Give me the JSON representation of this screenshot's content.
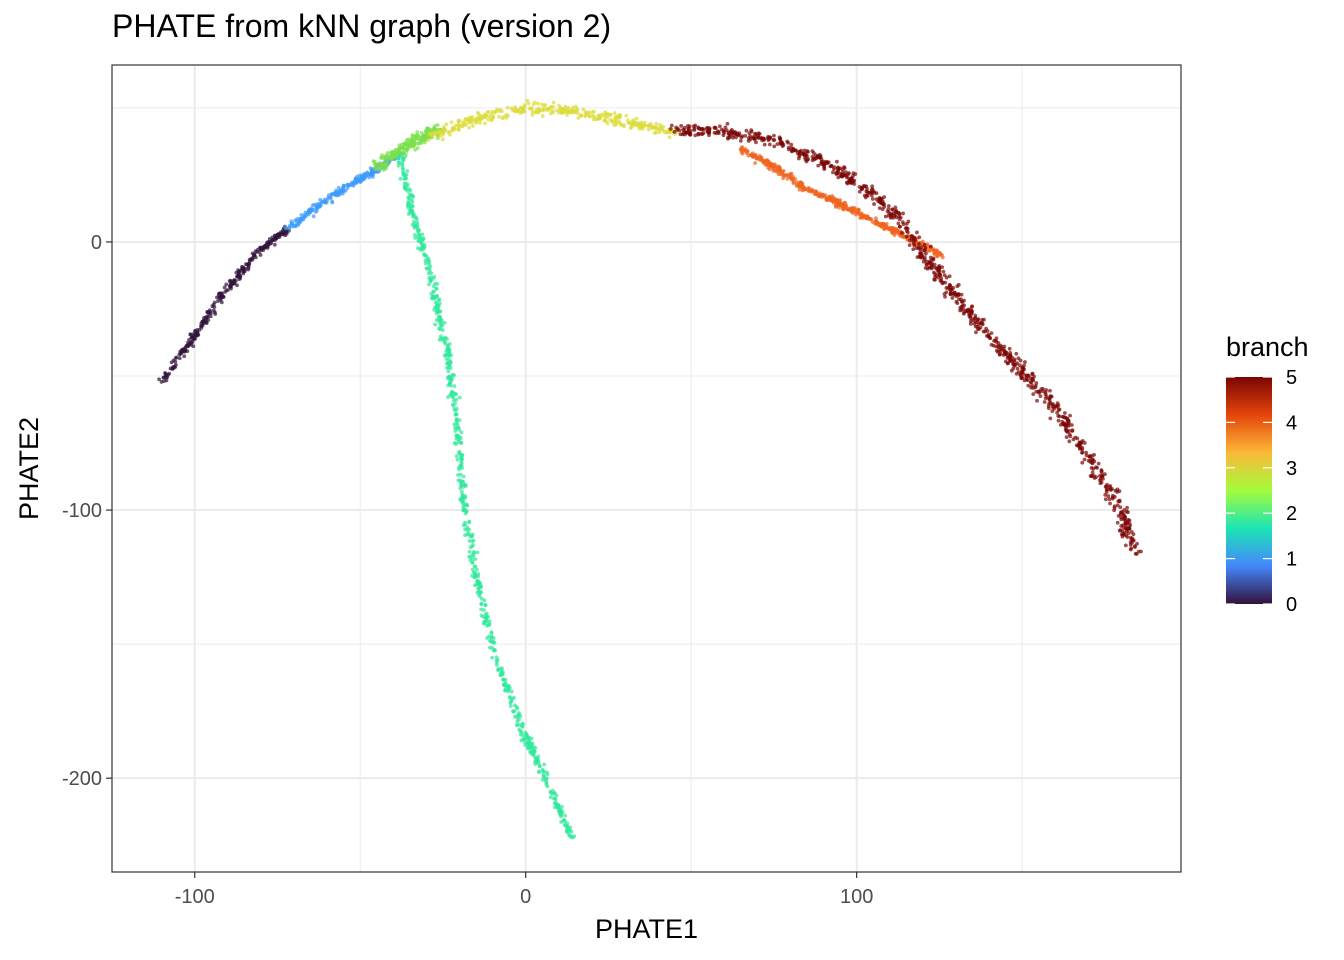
{
  "chart_data": {
    "type": "scatter",
    "title": "PHATE from kNN graph (version 2)",
    "xlabel": "PHATE1",
    "ylabel": "PHATE2",
    "xlim": [
      -125,
      198
    ],
    "ylim": [
      -235,
      66
    ],
    "x_ticks": [
      -100,
      0,
      100
    ],
    "y_ticks": [
      0,
      -100,
      -200
    ],
    "x_tick_labels": [
      "-100",
      "0",
      "100"
    ],
    "y_tick_labels": [
      "0",
      "-100",
      "-200"
    ],
    "grid": true,
    "legend": {
      "title": "branch",
      "placement": "right",
      "type": "colorbar",
      "range": [
        0,
        5
      ],
      "ticks": [
        5,
        4,
        3,
        2,
        1,
        0
      ],
      "tick_labels": [
        "5",
        "4",
        "3",
        "2",
        "1",
        "0"
      ],
      "colors": [
        "#30123b",
        "#4686fb",
        "#1be5b5",
        "#a4fc3c",
        "#fbb938",
        "#e4460a",
        "#7a0403"
      ]
    },
    "series": [
      {
        "branch": 0,
        "color": "#30123b",
        "points": [
          [
            -110,
            -52
          ],
          [
            -100,
            -35
          ],
          [
            -90,
            -17
          ],
          [
            -80,
            -3
          ],
          [
            -72,
            5
          ]
        ]
      },
      {
        "branch": 1,
        "color": "#3e9bfe",
        "points": [
          [
            -72,
            5
          ],
          [
            -62,
            14
          ],
          [
            -52,
            22
          ],
          [
            -45,
            27
          ],
          [
            -38,
            33
          ]
        ]
      },
      {
        "branch": 2,
        "color": "#2ee89a",
        "points": [
          [
            -38,
            33
          ],
          [
            -34,
            10
          ],
          [
            -28,
            -15
          ],
          [
            -24,
            -40
          ],
          [
            -21,
            -65
          ],
          [
            -19,
            -95
          ],
          [
            -15,
            -125
          ],
          [
            -9,
            -155
          ],
          [
            -1,
            -182
          ],
          [
            6,
            -200
          ],
          [
            14,
            -222
          ]
        ]
      },
      {
        "branch": 2.5,
        "color": "#7be04a",
        "points": [
          [
            -45,
            28
          ],
          [
            -38,
            34
          ],
          [
            -32,
            39
          ],
          [
            -26,
            42
          ]
        ]
      },
      {
        "branch": 3,
        "color": "#dcdc3a",
        "points": [
          [
            -28,
            40
          ],
          [
            -15,
            46
          ],
          [
            0,
            50
          ],
          [
            15,
            49
          ],
          [
            30,
            45
          ],
          [
            45,
            41
          ]
        ]
      },
      {
        "branch": 4,
        "color": "#f06420",
        "points": [
          [
            65,
            35
          ],
          [
            75,
            28
          ],
          [
            85,
            20
          ],
          [
            95,
            14
          ],
          [
            105,
            8
          ],
          [
            115,
            2
          ],
          [
            126,
            -5
          ]
        ]
      },
      {
        "branch": 5,
        "color": "#7a0403",
        "points": [
          [
            45,
            42
          ],
          [
            60,
            41
          ],
          [
            75,
            38
          ],
          [
            90,
            30
          ],
          [
            100,
            22
          ],
          [
            112,
            10
          ],
          [
            122,
            -8
          ],
          [
            130,
            -20
          ],
          [
            140,
            -35
          ],
          [
            150,
            -48
          ],
          [
            160,
            -62
          ],
          [
            170,
            -80
          ],
          [
            180,
            -100
          ],
          [
            184,
            -116
          ]
        ]
      }
    ]
  }
}
